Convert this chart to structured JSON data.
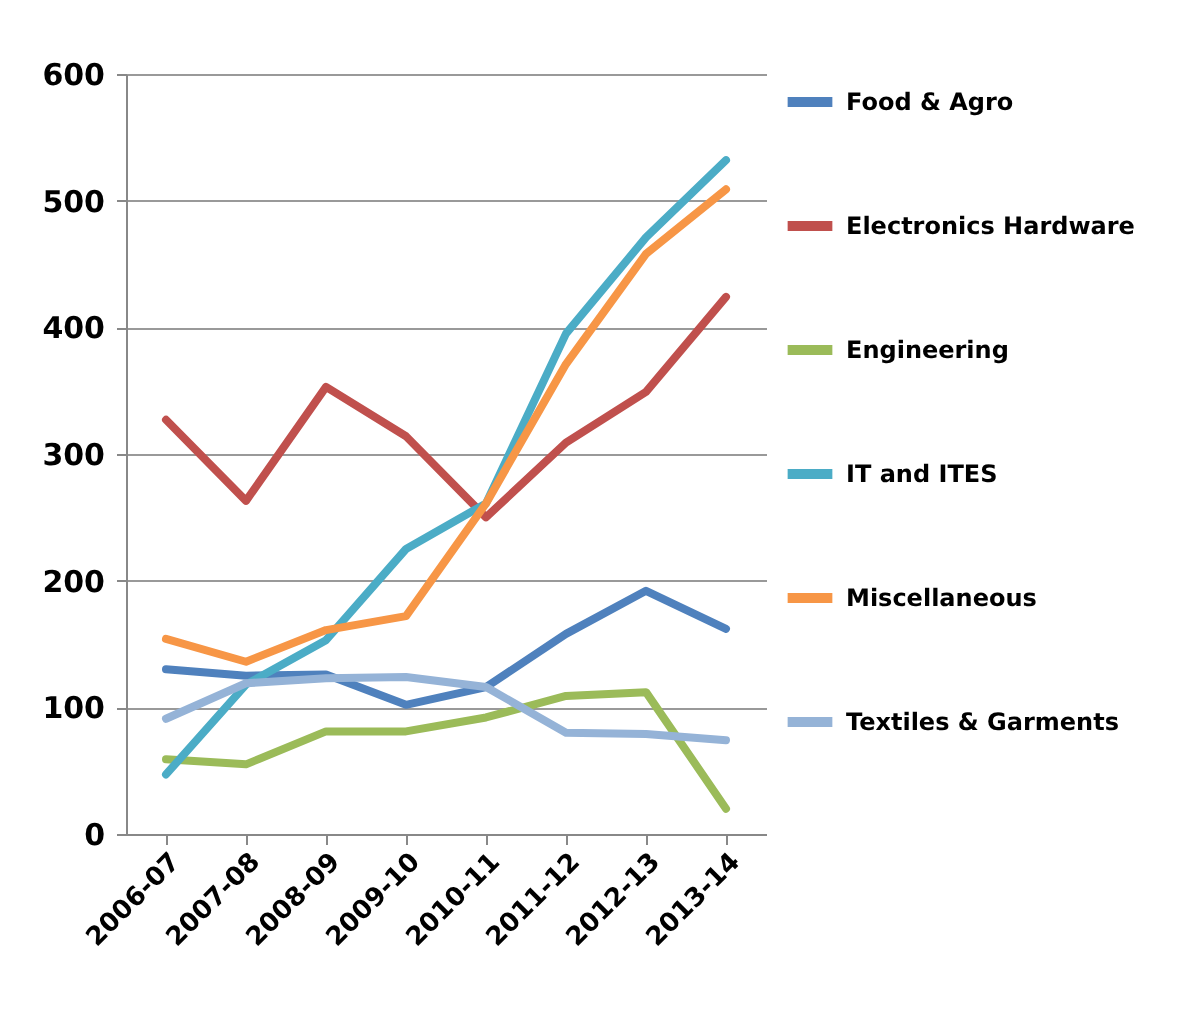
{
  "chart_data": {
    "type": "line",
    "categories": [
      "2006-07",
      "2007-08",
      "2008-09",
      "2009-10",
      "2010-11",
      "2011-12",
      "2012-13",
      "2013-14"
    ],
    "series": [
      {
        "name": "Food & Agro",
        "color": "#4f81bd",
        "values": [
          130,
          125,
          126,
          102,
          116,
          158,
          192,
          162
        ]
      },
      {
        "name": "Electronics Hardware",
        "color": "#c0504d",
        "values": [
          327,
          263,
          353,
          314,
          250,
          309,
          349,
          424
        ]
      },
      {
        "name": "Engineering",
        "color": "#9bbb59",
        "values": [
          59,
          55,
          81,
          81,
          92,
          109,
          112,
          20
        ]
      },
      {
        "name": "IT and ITES",
        "color": "#4bacc6",
        "values": [
          47,
          118,
          153,
          225,
          261,
          395,
          471,
          532
        ]
      },
      {
        "name": "Miscellaneous",
        "color": "#f79646",
        "values": [
          154,
          136,
          161,
          172,
          261,
          371,
          458,
          509
        ]
      },
      {
        "name": "Textiles & Garments",
        "color": "#95b3d7",
        "values": [
          91,
          119,
          123,
          124,
          116,
          80,
          79,
          74
        ]
      }
    ],
    "ylim": [
      0,
      600
    ],
    "yticks": [
      0,
      100,
      200,
      300,
      400,
      500,
      600
    ],
    "grid": "y",
    "legend": "right",
    "marker": "none",
    "line_style": "solid"
  }
}
